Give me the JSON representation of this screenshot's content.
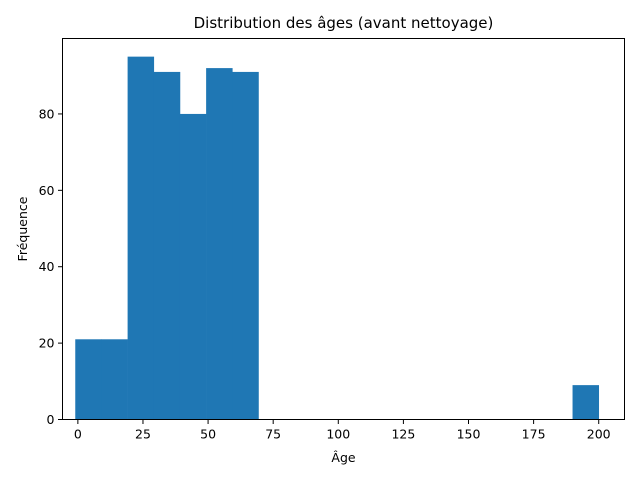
{
  "chart_data": {
    "type": "bar",
    "title": "Distribution des âges (avant nettoyage)",
    "xlabel": "Âge",
    "ylabel": "Fréquence",
    "xlim": [
      -5.9,
      209.9
    ],
    "ylim": [
      0,
      99.75
    ],
    "xticks": [
      0,
      25,
      50,
      75,
      100,
      125,
      150,
      175,
      200
    ],
    "yticks": [
      0,
      20,
      40,
      60,
      80
    ],
    "bar_color": "#1f77b4",
    "grid": false,
    "bins": [
      {
        "x0": -1.0,
        "x1": 9.05,
        "count": 21
      },
      {
        "x0": 9.05,
        "x1": 19.1,
        "count": 21
      },
      {
        "x0": 19.1,
        "x1": 29.15,
        "count": 95
      },
      {
        "x0": 29.15,
        "x1": 39.2,
        "count": 91
      },
      {
        "x0": 39.2,
        "x1": 49.25,
        "count": 80
      },
      {
        "x0": 49.25,
        "x1": 59.3,
        "count": 92
      },
      {
        "x0": 59.3,
        "x1": 69.35,
        "count": 91
      },
      {
        "x0": 69.35,
        "x1": 79.4,
        "count": 0
      },
      {
        "x0": 79.4,
        "x1": 89.45,
        "count": 0
      },
      {
        "x0": 89.45,
        "x1": 99.5,
        "count": 0
      },
      {
        "x0": 99.5,
        "x1": 109.55,
        "count": 0
      },
      {
        "x0": 109.55,
        "x1": 119.6,
        "count": 0
      },
      {
        "x0": 119.6,
        "x1": 129.65,
        "count": 0
      },
      {
        "x0": 129.65,
        "x1": 139.7,
        "count": 0
      },
      {
        "x0": 139.7,
        "x1": 149.75,
        "count": 0
      },
      {
        "x0": 149.75,
        "x1": 159.8,
        "count": 0
      },
      {
        "x0": 159.8,
        "x1": 169.85,
        "count": 0
      },
      {
        "x0": 169.85,
        "x1": 179.9,
        "count": 0
      },
      {
        "x0": 179.9,
        "x1": 189.95,
        "count": 0
      },
      {
        "x0": 189.95,
        "x1": 200.0,
        "count": 9
      }
    ]
  }
}
